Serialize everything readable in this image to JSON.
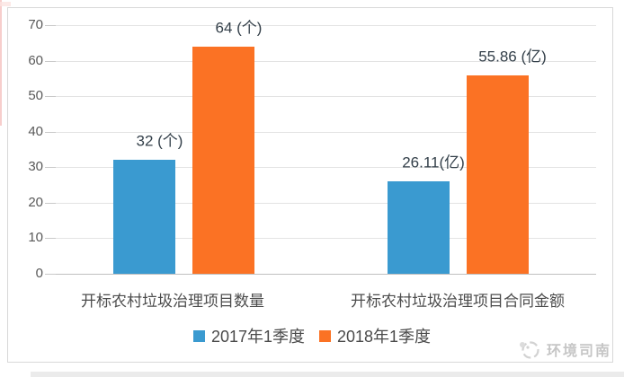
{
  "chart_data": {
    "type": "bar",
    "categories": [
      "开标农村垃圾治理项目数量",
      "开标农村垃圾治理项目合同金额"
    ],
    "series": [
      {
        "name": "2017年1季度",
        "color": "#3A9AD0",
        "values": [
          32,
          26.11
        ],
        "data_labels": [
          "32 (个)",
          "26.11(亿)"
        ]
      },
      {
        "name": "2018年1季度",
        "color": "#FB7224",
        "values": [
          64,
          55.86
        ],
        "data_labels": [
          "64 (个)",
          "55.86 (亿)"
        ]
      }
    ],
    "title": "",
    "xlabel": "",
    "ylabel": "",
    "ylim": [
      0,
      70
    ],
    "y_tick_step": 10,
    "y_tick_labels": [
      "0",
      "10",
      "20",
      "30",
      "40",
      "50",
      "60",
      "70"
    ],
    "units": [
      "个",
      "亿"
    ],
    "grid": true,
    "legend_position": "bottom"
  },
  "watermark": {
    "text": "环境司南"
  },
  "colors": {
    "series_2017": "#3A9AD0",
    "series_2018": "#FB7224",
    "gridline": "#e3e3e3",
    "axis_line": "#bfbfbf",
    "tick_text": "#595959",
    "label_text": "#34404a",
    "watermark_text": "#c6c6c6"
  }
}
